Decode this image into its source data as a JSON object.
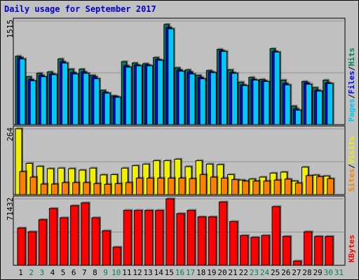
{
  "title": "Daily usage for September 2017",
  "colors": {
    "background": "#c0c0c0",
    "plot_background": "#c0c0c0",
    "hits": "#00805c",
    "files": "#0000ff",
    "pages": "#00c8f8",
    "visits": "#f0f000",
    "sites": "#ff8000",
    "kbytes": "#ff0000",
    "title": "#0000cc",
    "weekday_label": "#000000",
    "weekend_label": "#00805c"
  },
  "chart_data": [
    {
      "type": "bar",
      "panel": "hits-files-pages",
      "x": [
        1,
        2,
        3,
        4,
        5,
        6,
        7,
        8,
        9,
        10,
        11,
        12,
        13,
        14,
        15,
        16,
        17,
        18,
        19,
        20,
        21,
        22,
        23,
        24,
        25,
        26,
        27,
        28,
        29,
        30,
        31
      ],
      "y_tick_label": "1515",
      "ylim": [
        0,
        1515
      ],
      "legend": [
        "Pages",
        "Files",
        "Hits"
      ],
      "legend_separator": "/",
      "legend_placement": "right",
      "series": [
        {
          "name": "Hits",
          "values": [
            1000,
            700,
            750,
            770,
            960,
            810,
            810,
            720,
            500,
            420,
            920,
            900,
            890,
            980,
            1465,
            830,
            800,
            720,
            790,
            1100,
            800,
            620,
            690,
            660,
            1110,
            650,
            270,
            630,
            540,
            650,
            0
          ]
        },
        {
          "name": "Files",
          "values": [
            980,
            660,
            720,
            740,
            920,
            760,
            770,
            700,
            470,
            410,
            860,
            870,
            870,
            950,
            1420,
            800,
            770,
            690,
            770,
            1080,
            760,
            580,
            660,
            640,
            1070,
            600,
            230,
            610,
            500,
            610,
            0
          ]
        },
        {
          "name": "Pages",
          "values": [
            960,
            640,
            700,
            730,
            900,
            740,
            750,
            670,
            460,
            400,
            840,
            860,
            860,
            940,
            1400,
            780,
            740,
            670,
            760,
            1070,
            750,
            570,
            650,
            630,
            1060,
            580,
            210,
            590,
            490,
            600,
            0
          ]
        }
      ]
    },
    {
      "type": "bar",
      "panel": "visits-sites",
      "x": [
        1,
        2,
        3,
        4,
        5,
        6,
        7,
        8,
        9,
        10,
        11,
        12,
        13,
        14,
        15,
        16,
        17,
        18,
        19,
        20,
        21,
        22,
        23,
        24,
        25,
        26,
        27,
        28,
        29,
        30,
        31
      ],
      "y_tick_label": "264",
      "ylim": [
        0,
        264
      ],
      "legend": [
        "Sites",
        "Visits"
      ],
      "legend_separator": "/",
      "legend_placement": "right",
      "series": [
        {
          "name": "Visits",
          "values": [
            264,
            125,
            113,
            104,
            106,
            104,
            98,
            106,
            79,
            80,
            106,
            116,
            122,
            136,
            136,
            142,
            112,
            136,
            122,
            120,
            80,
            58,
            62,
            70,
            86,
            90,
            54,
            110,
            78,
            74,
            0
          ]
        },
        {
          "name": "Sites",
          "values": [
            92,
            70,
            42,
            42,
            48,
            48,
            48,
            44,
            41,
            44,
            48,
            66,
            66,
            66,
            66,
            66,
            64,
            80,
            70,
            66,
            60,
            54,
            54,
            54,
            58,
            62,
            46,
            76,
            72,
            64,
            0
          ]
        }
      ]
    },
    {
      "type": "bar",
      "panel": "kbytes",
      "x": [
        1,
        2,
        3,
        4,
        5,
        6,
        7,
        8,
        9,
        10,
        11,
        12,
        13,
        14,
        15,
        16,
        17,
        18,
        19,
        20,
        21,
        22,
        23,
        24,
        25,
        26,
        27,
        28,
        29,
        30,
        31
      ],
      "y_tick_label": "71432",
      "ylim": [
        0,
        71432
      ],
      "legend": [
        "KBytes"
      ],
      "legend_placement": "right",
      "series": [
        {
          "name": "KBytes",
          "values": [
            40000,
            36000,
            49000,
            61000,
            51000,
            64000,
            67000,
            51000,
            37000,
            19500,
            59000,
            59000,
            59000,
            59000,
            71432,
            55500,
            59000,
            52000,
            52000,
            68000,
            47000,
            32000,
            30000,
            32000,
            63000,
            31000,
            4500,
            36000,
            31000,
            31000,
            0
          ]
        }
      ]
    }
  ]
}
